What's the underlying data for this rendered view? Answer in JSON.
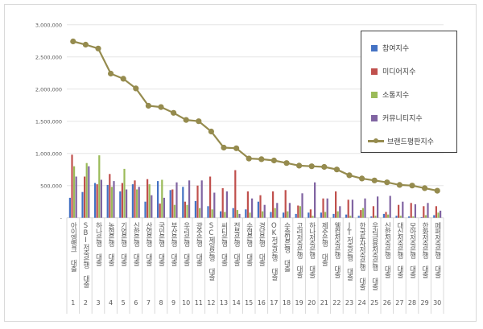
{
  "chart_data": {
    "type": "bar+line",
    "title": "",
    "xlabel": "",
    "ylabel": "",
    "ylim": [
      0,
      3000000
    ],
    "yticks": [
      "-",
      "500,000",
      "1,000,000",
      "1,500,000",
      "2,000,000",
      "2,500,000",
      "3,000,000"
    ],
    "grid": true,
    "legend_position": "right",
    "numbers": [
      "1",
      "2",
      "3",
      "4",
      "5",
      "6",
      "7",
      "8",
      "9",
      "10",
      "11",
      "12",
      "13",
      "14",
      "15",
      "16",
      "17",
      "18",
      "19",
      "20",
      "21",
      "22",
      "23",
      "24",
      "25",
      "26",
      "27",
      "28",
      "29",
      "30"
    ],
    "categories": [
      "아이엠뱅크 대출",
      "SBI저축은행 대출",
      "하나은행 대출",
      "농협은행 대출",
      "기업은행 대출",
      "신한은행 대출",
      "산업은행 대출",
      "국민은행 대출",
      "부산은행 대출",
      "우리은행 대출",
      "광주은행 대출",
      "SC제일은행 대출",
      "씨티은행 대출",
      "전북은행 대출",
      "수협은행 대출",
      "경남은행 대출",
      "OK저축은행 대출",
      "수출입은행 대출",
      "고려저축은행 대출",
      "하나저축은행 대출",
      "제주은행 대출",
      "웰컴저축은행 대출",
      "JT저축은행 대출",
      "한국투자저축은행 대출",
      "우리금융저축은행 대출",
      "신한저축은행 대출",
      "대신저축은행 대출",
      "모아저축은행 대출",
      "한화저축은행 대출",
      "페퍼저축은행 대출"
    ],
    "series": [
      {
        "name": "참여지수",
        "type": "bar",
        "color": "#4472C4",
        "values": [
          310000,
          400000,
          540000,
          510000,
          410000,
          520000,
          250000,
          570000,
          430000,
          480000,
          260000,
          180000,
          100000,
          150000,
          130000,
          250000,
          90000,
          80000,
          60000,
          80000,
          80000,
          60000,
          50000,
          30000,
          20000,
          60000,
          30000,
          20000,
          10000,
          40000
        ]
      },
      {
        "name": "미디어지수",
        "type": "bar",
        "color": "#C0504D",
        "values": [
          980000,
          640000,
          520000,
          680000,
          540000,
          580000,
          600000,
          220000,
          440000,
          250000,
          500000,
          640000,
          460000,
          740000,
          410000,
          350000,
          410000,
          430000,
          190000,
          130000,
          300000,
          410000,
          280000,
          120000,
          180000,
          90000,
          200000,
          230000,
          180000,
          180000
        ]
      },
      {
        "name": "소통지수",
        "type": "bar",
        "color": "#9BBB59",
        "values": [
          800000,
          850000,
          970000,
          480000,
          760000,
          440000,
          520000,
          590000,
          200000,
          200000,
          150000,
          130000,
          90000,
          120000,
          80000,
          100000,
          150000,
          100000,
          180000,
          30000,
          90000,
          100000,
          30000,
          150000,
          30000,
          50000,
          30000,
          20000,
          40000,
          80000
        ]
      },
      {
        "name": "커뮤니티지수",
        "type": "bar",
        "color": "#8064A2",
        "values": [
          640000,
          800000,
          590000,
          570000,
          440000,
          480000,
          350000,
          310000,
          550000,
          580000,
          580000,
          390000,
          410000,
          60000,
          300000,
          200000,
          230000,
          230000,
          380000,
          550000,
          300000,
          180000,
          280000,
          300000,
          330000,
          340000,
          250000,
          210000,
          230000,
          110000
        ]
      },
      {
        "name": "브랜드평판지수",
        "type": "line",
        "color": "#958B4E",
        "values": [
          2740000,
          2690000,
          2630000,
          2240000,
          2160000,
          2010000,
          1740000,
          1720000,
          1630000,
          1520000,
          1500000,
          1340000,
          1090000,
          1080000,
          920000,
          910000,
          890000,
          850000,
          810000,
          800000,
          790000,
          750000,
          660000,
          610000,
          580000,
          550000,
          510000,
          500000,
          460000,
          420000
        ]
      }
    ]
  }
}
